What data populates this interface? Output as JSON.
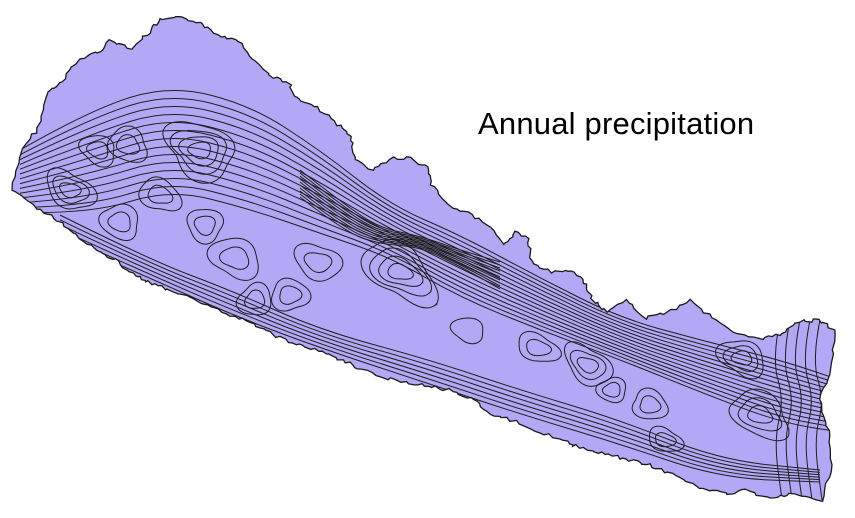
{
  "map": {
    "title": "Annual precipitation",
    "fill_color": "#b3a8f5",
    "outline_color": "#1a1a1a",
    "contour_color": "#1f1f1f",
    "background_color": "#ffffff"
  }
}
